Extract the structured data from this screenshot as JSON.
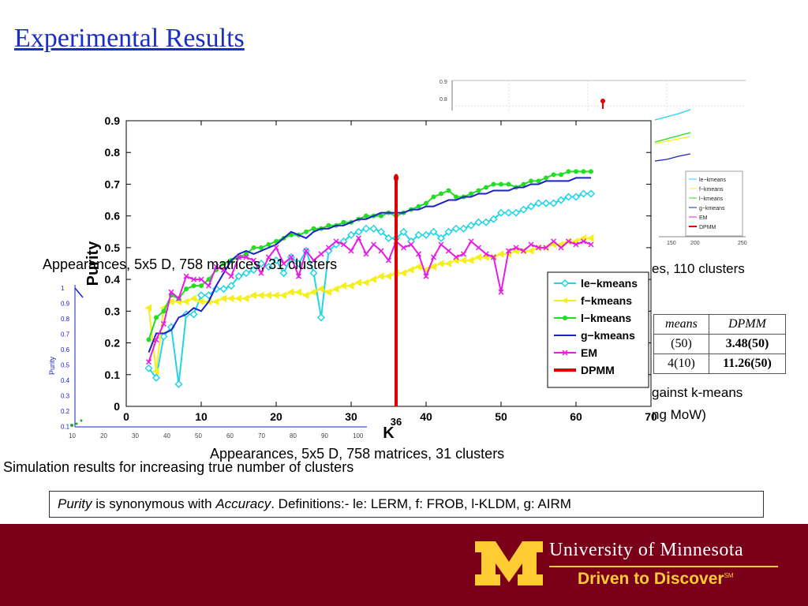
{
  "slide": {
    "title": "Experimental Results",
    "caption_left_top": "Appearances, 5x5 D, 758 matrices, 31 clusters",
    "caption_main": "Appearances, 5x5 D, 758 matrices, 31 clusters",
    "caption_sim": "Simulation results for increasing true number of clusters",
    "caption_right_1": "es, 110 clusters",
    "caption_right_2": "gainst k-means",
    "caption_right_3": "ng MoW)",
    "definitions": {
      "purity": "Purity",
      "mid": " is synonymous with ",
      "accuracy": "Accuracy",
      "rest": ".   Definitions:- le: LERM, f: FROB, l-KLDM, g: AIRM"
    }
  },
  "background_table": {
    "headers": [
      "means",
      "DPMM"
    ],
    "rows": [
      [
        "(50)",
        "3.48(50)"
      ],
      [
        "4(10)",
        "11.26(50)"
      ]
    ]
  },
  "footer": {
    "university": "University of Minnesota",
    "tagline": "Driven to Discover",
    "tagline_mark": "SM",
    "logo": "block-m-logo"
  },
  "chart_data": [
    {
      "type": "line",
      "title": "",
      "xlabel": "K",
      "ylabel": "Purity",
      "xlim": [
        0,
        70
      ],
      "ylim": [
        0,
        0.9
      ],
      "xticks": [
        0,
        10,
        20,
        30,
        40,
        50,
        60,
        70
      ],
      "yticks": [
        0,
        0.1,
        0.2,
        0.3,
        0.4,
        0.5,
        0.6,
        0.7,
        0.8,
        0.9
      ],
      "grid": false,
      "legend_position": "lower-right",
      "vline": {
        "x": 36,
        "label": "36",
        "series": "DPMM",
        "top": 0.72
      },
      "series": [
        {
          "name": "le−kmeans",
          "color": "#22d4e8",
          "marker": "diamond",
          "x": [
            3,
            4,
            5,
            6,
            7,
            8,
            9,
            10,
            11,
            12,
            13,
            14,
            15,
            16,
            17,
            18,
            19,
            20,
            21,
            22,
            23,
            24,
            25,
            26,
            27,
            28,
            29,
            30,
            31,
            32,
            33,
            34,
            35,
            36,
            37,
            38,
            39,
            40,
            41,
            42,
            43,
            44,
            45,
            46,
            47,
            48,
            49,
            50,
            51,
            52,
            53,
            54,
            55,
            56,
            57,
            58,
            59,
            60,
            61,
            62
          ],
          "y": [
            0.12,
            0.09,
            0.22,
            0.25,
            0.07,
            0.29,
            0.29,
            0.35,
            0.35,
            0.37,
            0.37,
            0.38,
            0.41,
            0.42,
            0.43,
            0.45,
            0.44,
            0.46,
            0.42,
            0.47,
            0.45,
            0.49,
            0.42,
            0.28,
            0.49,
            0.51,
            0.52,
            0.54,
            0.55,
            0.56,
            0.56,
            0.55,
            0.53,
            0.53,
            0.55,
            0.52,
            0.54,
            0.54,
            0.55,
            0.53,
            0.55,
            0.56,
            0.56,
            0.57,
            0.58,
            0.58,
            0.59,
            0.61,
            0.61,
            0.61,
            0.62,
            0.63,
            0.64,
            0.64,
            0.64,
            0.65,
            0.66,
            0.66,
            0.67,
            0.67
          ]
        },
        {
          "name": "f−kmeans",
          "color": "#f5ef1c",
          "marker": "triangle-left",
          "x": [
            3,
            4,
            5,
            6,
            7,
            8,
            9,
            10,
            11,
            12,
            13,
            14,
            15,
            16,
            17,
            18,
            19,
            20,
            21,
            22,
            23,
            24,
            25,
            26,
            27,
            28,
            29,
            30,
            31,
            32,
            33,
            34,
            35,
            36,
            37,
            38,
            39,
            40,
            41,
            42,
            43,
            44,
            45,
            46,
            47,
            48,
            49,
            50,
            51,
            52,
            53,
            54,
            55,
            56,
            57,
            58,
            59,
            60,
            61,
            62
          ],
          "y": [
            0.31,
            0.11,
            0.31,
            0.33,
            0.33,
            0.33,
            0.34,
            0.33,
            0.33,
            0.33,
            0.34,
            0.34,
            0.34,
            0.34,
            0.35,
            0.35,
            0.35,
            0.35,
            0.35,
            0.36,
            0.36,
            0.35,
            0.36,
            0.37,
            0.36,
            0.37,
            0.38,
            0.38,
            0.39,
            0.39,
            0.4,
            0.41,
            0.41,
            0.42,
            0.42,
            0.43,
            0.44,
            0.43,
            0.44,
            0.45,
            0.45,
            0.46,
            0.46,
            0.46,
            0.47,
            0.47,
            0.47,
            0.48,
            0.48,
            0.49,
            0.49,
            0.49,
            0.5,
            0.5,
            0.51,
            0.51,
            0.52,
            0.52,
            0.53,
            0.53
          ]
        },
        {
          "name": "l−kmeans",
          "color": "#22dd22",
          "marker": "circle",
          "x": [
            3,
            4,
            5,
            6,
            7,
            8,
            9,
            10,
            11,
            12,
            13,
            14,
            15,
            16,
            17,
            18,
            19,
            20,
            21,
            22,
            23,
            24,
            25,
            26,
            27,
            28,
            29,
            30,
            31,
            32,
            33,
            34,
            35,
            36,
            37,
            38,
            39,
            40,
            41,
            42,
            43,
            44,
            45,
            46,
            47,
            48,
            49,
            50,
            51,
            52,
            53,
            54,
            55,
            56,
            57,
            58,
            59,
            60,
            61,
            62
          ],
          "y": [
            0.21,
            0.28,
            0.3,
            0.35,
            0.34,
            0.37,
            0.38,
            0.38,
            0.4,
            0.43,
            0.45,
            0.46,
            0.47,
            0.48,
            0.5,
            0.5,
            0.51,
            0.52,
            0.53,
            0.54,
            0.54,
            0.55,
            0.56,
            0.56,
            0.57,
            0.57,
            0.58,
            0.58,
            0.59,
            0.6,
            0.6,
            0.6,
            0.61,
            0.6,
            0.61,
            0.62,
            0.63,
            0.64,
            0.66,
            0.67,
            0.68,
            0.66,
            0.66,
            0.67,
            0.68,
            0.69,
            0.7,
            0.7,
            0.7,
            0.69,
            0.7,
            0.71,
            0.71,
            0.72,
            0.73,
            0.73,
            0.74,
            0.74,
            0.74,
            0.74
          ]
        },
        {
          "name": "g−kmeans",
          "color": "#1a22c8",
          "marker": "none",
          "x": [
            3,
            4,
            5,
            6,
            7,
            8,
            9,
            10,
            11,
            12,
            13,
            14,
            15,
            16,
            17,
            18,
            19,
            20,
            21,
            22,
            23,
            24,
            25,
            26,
            27,
            28,
            29,
            30,
            31,
            32,
            33,
            34,
            35,
            36,
            37,
            38,
            39,
            40,
            41,
            42,
            43,
            44,
            45,
            46,
            47,
            48,
            49,
            50,
            51,
            52,
            53,
            54,
            55,
            56,
            57,
            58,
            59,
            60,
            61,
            62
          ],
          "y": [
            0.17,
            0.23,
            0.23,
            0.24,
            0.28,
            0.29,
            0.31,
            0.3,
            0.33,
            0.38,
            0.42,
            0.46,
            0.48,
            0.49,
            0.48,
            0.49,
            0.5,
            0.51,
            0.53,
            0.55,
            0.54,
            0.53,
            0.55,
            0.56,
            0.56,
            0.57,
            0.57,
            0.58,
            0.59,
            0.59,
            0.6,
            0.61,
            0.61,
            0.61,
            0.61,
            0.62,
            0.62,
            0.63,
            0.63,
            0.64,
            0.65,
            0.65,
            0.66,
            0.66,
            0.67,
            0.67,
            0.68,
            0.68,
            0.68,
            0.69,
            0.69,
            0.7,
            0.7,
            0.71,
            0.71,
            0.71,
            0.71,
            0.72,
            0.72,
            0.72
          ]
        },
        {
          "name": "EM",
          "color": "#e81ae8",
          "marker": "x",
          "x": [
            3,
            4,
            5,
            6,
            7,
            8,
            9,
            10,
            11,
            12,
            13,
            14,
            15,
            16,
            17,
            18,
            19,
            20,
            21,
            22,
            23,
            24,
            25,
            26,
            27,
            28,
            29,
            30,
            31,
            32,
            33,
            34,
            35,
            36,
            37,
            38,
            39,
            40,
            41,
            42,
            43,
            44,
            45,
            46,
            47,
            48,
            49,
            50,
            51,
            52,
            53,
            54,
            55,
            56,
            57,
            58,
            59,
            60,
            61,
            62
          ],
          "y": [
            0.14,
            0.21,
            0.26,
            0.36,
            0.34,
            0.41,
            0.4,
            0.4,
            0.38,
            0.44,
            0.43,
            0.41,
            0.47,
            0.47,
            0.46,
            0.42,
            0.47,
            0.5,
            0.45,
            0.47,
            0.41,
            0.49,
            0.46,
            0.48,
            0.5,
            0.52,
            0.51,
            0.49,
            0.53,
            0.48,
            0.51,
            0.49,
            0.46,
            0.52,
            0.5,
            0.51,
            0.48,
            0.41,
            0.47,
            0.51,
            0.49,
            0.47,
            0.48,
            0.52,
            0.5,
            0.48,
            0.47,
            0.36,
            0.49,
            0.5,
            0.49,
            0.51,
            0.5,
            0.5,
            0.52,
            0.5,
            0.52,
            0.51,
            0.52,
            0.51
          ]
        }
      ]
    }
  ],
  "background_charts": {
    "top_right": {
      "yticks": [
        "0.9",
        "0.8"
      ],
      "xticks": [
        "200",
        "250"
      ],
      "legend": [
        "le−kmeans",
        "f−kmeans",
        "l−kmeans",
        "g−kmeans",
        "EM",
        "DPMM"
      ],
      "x_tail_label": "150"
    },
    "left": {
      "ylabel": "Purity",
      "yticks": [
        "1",
        "0.9",
        "0.8",
        "0.7",
        "0.6",
        "0.5",
        "0.4",
        "0.3",
        "0.2",
        "0.1"
      ],
      "xticks": [
        "10",
        "20",
        "30",
        "40",
        "50",
        "60",
        "70",
        "80",
        "90",
        "100"
      ]
    }
  }
}
